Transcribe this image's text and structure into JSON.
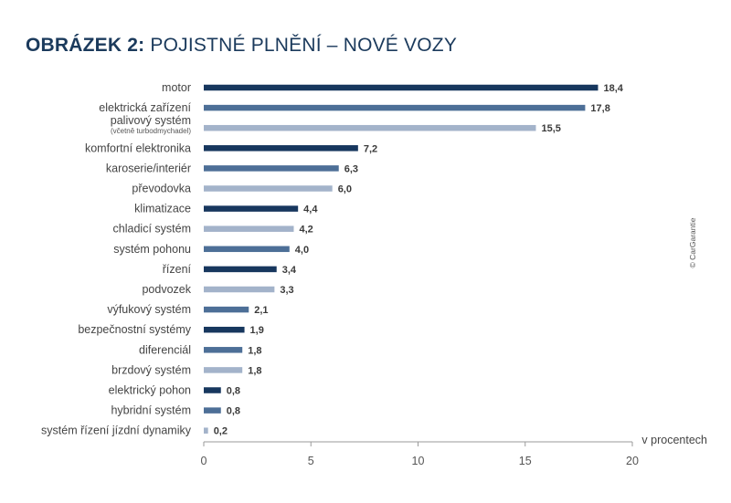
{
  "title": {
    "bold_part": "OBRÁZEK 2:",
    "rest": " POJISTNÉ PLNĚNÍ – NOVÉ VOZY"
  },
  "copyright": "© CarGarantie",
  "colors": {
    "dark": "#17375e",
    "medium": "#4d6f97",
    "light": "#a3b3ca",
    "axis": "#9a9a9a"
  },
  "chart_data": {
    "type": "bar",
    "orientation": "horizontal",
    "categories": [
      "motor",
      "elektrická zařízení",
      "palivový systém",
      "komfortní elektronika",
      "karoserie/interiér",
      "převodovka",
      "klimatizace",
      "chladicí systém",
      "systém pohonu",
      "řízení",
      "podvozek",
      "výfukový systém",
      "bezpečnostní systémy",
      "diferenciál",
      "brzdový systém",
      "elektrický pohon",
      "hybridní systém",
      "systém řízení jízdní dynamiky"
    ],
    "category_notes": [
      "",
      "",
      "(včetně turbodmychadel)",
      "",
      "",
      "",
      "",
      "",
      "",
      "",
      "",
      "",
      "",
      "",
      "",
      "",
      "",
      ""
    ],
    "values": [
      18.4,
      17.8,
      15.5,
      7.2,
      6.3,
      6.0,
      4.4,
      4.2,
      4.0,
      3.4,
      3.3,
      2.1,
      1.9,
      1.8,
      1.8,
      0.8,
      0.8,
      0.2
    ],
    "value_labels": [
      "18,4",
      "17,8",
      "15,5",
      "7,2",
      "6,3",
      "6,0",
      "4,4",
      "4,2",
      "4,0",
      "3,4",
      "3,3",
      "2,1",
      "1,9",
      "1,8",
      "1,8",
      "0,8",
      "0,8",
      "0,2"
    ],
    "bar_shades": [
      "dark",
      "medium",
      "light",
      "dark",
      "medium",
      "light",
      "dark",
      "light",
      "medium",
      "dark",
      "light",
      "medium",
      "dark",
      "medium",
      "light",
      "dark",
      "medium",
      "light"
    ],
    "xlim": [
      0,
      20
    ],
    "xticks": [
      0,
      5,
      10,
      15,
      20
    ],
    "xtick_labels": [
      "0",
      "5",
      "10",
      "15",
      "20"
    ],
    "xlabel": "v procentech",
    "grid": false
  }
}
